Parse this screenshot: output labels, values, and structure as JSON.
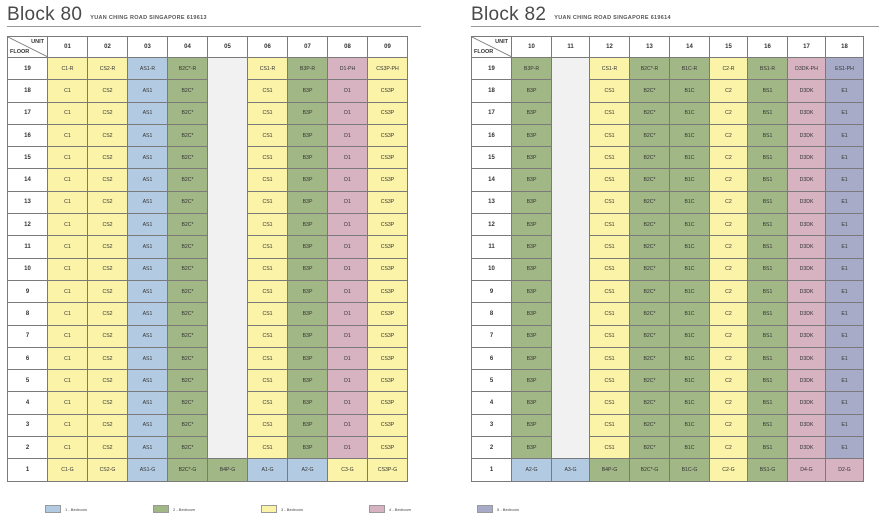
{
  "colors": {
    "1": "#b3cbe2",
    "2": "#a2b786",
    "3": "#fbf3a7",
    "4": "#d7b3c2",
    "5": "#a7abc7"
  },
  "labels": {
    "unit": "UNIT",
    "floor": "FLOOR"
  },
  "blocks": [
    {
      "key": "b80",
      "title": "Block 80",
      "address": "YUAN CHING ROAD SINGAPORE 619613",
      "units": [
        "01",
        "02",
        "03",
        "04",
        "05",
        "06",
        "07",
        "08",
        "09"
      ],
      "void_col": 4,
      "colors": [
        3,
        3,
        1,
        2,
        2,
        3,
        2,
        4,
        3
      ],
      "floors": [
        {
          "floor": "19",
          "cells": [
            "C1-R",
            "CS2-R",
            "AS1-R",
            "B2C*-R",
            "",
            "CS1-R",
            "B3P-R",
            "D1-PH",
            "CS3P-PH"
          ]
        },
        {
          "floor": "18",
          "cells": [
            "C1",
            "CS2",
            "AS1",
            "B2C*",
            "",
            "CS1",
            "B3P",
            "D1",
            "CS3P"
          ]
        },
        {
          "floor": "17",
          "cells": [
            "C1",
            "CS2",
            "AS1",
            "B2C*",
            "",
            "CS1",
            "B3P",
            "D1",
            "CS3P"
          ]
        },
        {
          "floor": "16",
          "cells": [
            "C1",
            "CS2",
            "AS1",
            "B2C*",
            "",
            "CS1",
            "B3P",
            "D1",
            "CS3P"
          ]
        },
        {
          "floor": "15",
          "cells": [
            "C1",
            "CS2",
            "AS1",
            "B2C*",
            "",
            "CS1",
            "B3P",
            "D1",
            "CS3P"
          ]
        },
        {
          "floor": "14",
          "cells": [
            "C1",
            "CS2",
            "AS1",
            "B2C*",
            "",
            "CS1",
            "B3P",
            "D1",
            "CS3P"
          ]
        },
        {
          "floor": "13",
          "cells": [
            "C1",
            "CS2",
            "AS1",
            "B2C*",
            "",
            "CS1",
            "B3P",
            "D1",
            "CS3P"
          ]
        },
        {
          "floor": "12",
          "cells": [
            "C1",
            "CS2",
            "AS1",
            "B2C*",
            "",
            "CS1",
            "B3P",
            "D1",
            "CS3P"
          ]
        },
        {
          "floor": "11",
          "cells": [
            "C1",
            "CS2",
            "AS1",
            "B2C*",
            "",
            "CS1",
            "B3P",
            "D1",
            "CS3P"
          ]
        },
        {
          "floor": "10",
          "cells": [
            "C1",
            "CS2",
            "AS1",
            "B2C*",
            "",
            "CS1",
            "B3P",
            "D1",
            "CS3P"
          ]
        },
        {
          "floor": "9",
          "cells": [
            "C1",
            "CS2",
            "AS1",
            "B2C*",
            "",
            "CS1",
            "B3P",
            "D1",
            "CS3P"
          ]
        },
        {
          "floor": "8",
          "cells": [
            "C1",
            "CS2",
            "AS1",
            "B2C*",
            "",
            "CS1",
            "B3P",
            "D1",
            "CS3P"
          ]
        },
        {
          "floor": "7",
          "cells": [
            "C1",
            "CS2",
            "AS1",
            "B2C*",
            "",
            "CS1",
            "B3P",
            "D1",
            "CS3P"
          ]
        },
        {
          "floor": "6",
          "cells": [
            "C1",
            "CS2",
            "AS1",
            "B2C*",
            "",
            "CS1",
            "B3P",
            "D1",
            "CS3P"
          ]
        },
        {
          "floor": "5",
          "cells": [
            "C1",
            "CS2",
            "AS1",
            "B2C*",
            "",
            "CS1",
            "B3P",
            "D1",
            "CS3P"
          ]
        },
        {
          "floor": "4",
          "cells": [
            "C1",
            "CS2",
            "AS1",
            "B2C*",
            "",
            "CS1",
            "B3P",
            "D1",
            "CS3P"
          ]
        },
        {
          "floor": "3",
          "cells": [
            "C1",
            "CS2",
            "AS1",
            "B2C*",
            "",
            "CS1",
            "B3P",
            "D1",
            "CS3P"
          ]
        },
        {
          "floor": "2",
          "cells": [
            "C1",
            "CS2",
            "AS1",
            "B2C*",
            "",
            "CS1",
            "B3P",
            "D1",
            "CS3P"
          ]
        }
      ],
      "ground": {
        "floor": "1",
        "cells": [
          "C1-G",
          "CS2-G",
          "AS1-G",
          "B2C*-G",
          "B4P-G",
          "A1-G",
          "A2-G",
          "C3-G",
          "CS3P-G"
        ],
        "colors": [
          3,
          3,
          1,
          2,
          2,
          1,
          1,
          3,
          3
        ]
      }
    },
    {
      "key": "b82",
      "title": "Block 82",
      "address": "YUAN CHING ROAD SINGAPORE 619614",
      "units": [
        "10",
        "11",
        "12",
        "13",
        "14",
        "15",
        "16",
        "17",
        "18"
      ],
      "void_col": 1,
      "colors": [
        2,
        2,
        3,
        2,
        2,
        3,
        2,
        4,
        5
      ],
      "floors": [
        {
          "floor": "19",
          "cells": [
            "B3P-R",
            "",
            "CS1-R",
            "B2C*-R",
            "B1C-R",
            "C2-R",
            "BS1-R",
            "D3DK-PH",
            "ES1-PH"
          ]
        },
        {
          "floor": "18",
          "cells": [
            "B3P",
            "",
            "CS1",
            "B2C*",
            "B1C",
            "C2",
            "BS1",
            "D3DK",
            "E1"
          ]
        },
        {
          "floor": "17",
          "cells": [
            "B3P",
            "",
            "CS1",
            "B2C*",
            "B1C",
            "C2",
            "BS1",
            "D3DK",
            "E1"
          ]
        },
        {
          "floor": "16",
          "cells": [
            "B3P",
            "",
            "CS1",
            "B2C*",
            "B1C",
            "C2",
            "BS1",
            "D3DK",
            "E1"
          ]
        },
        {
          "floor": "15",
          "cells": [
            "B3P",
            "",
            "CS1",
            "B2C*",
            "B1C",
            "C2",
            "BS1",
            "D3DK",
            "E1"
          ]
        },
        {
          "floor": "14",
          "cells": [
            "B3P",
            "",
            "CS1",
            "B2C*",
            "B1C",
            "C2",
            "BS1",
            "D3DK",
            "E1"
          ]
        },
        {
          "floor": "13",
          "cells": [
            "B3P",
            "",
            "CS1",
            "B2C*",
            "B1C",
            "C2",
            "BS1",
            "D3DK",
            "E1"
          ]
        },
        {
          "floor": "12",
          "cells": [
            "B3P",
            "",
            "CS1",
            "B2C*",
            "B1C",
            "C2",
            "BS1",
            "D3DK",
            "E1"
          ]
        },
        {
          "floor": "11",
          "cells": [
            "B3P",
            "",
            "CS1",
            "B2C*",
            "B1C",
            "C2",
            "BS1",
            "D3DK",
            "E1"
          ]
        },
        {
          "floor": "10",
          "cells": [
            "B3P",
            "",
            "CS1",
            "B2C*",
            "B1C",
            "C2",
            "BS1",
            "D3DK",
            "E1"
          ]
        },
        {
          "floor": "9",
          "cells": [
            "B3P",
            "",
            "CS1",
            "B2C*",
            "B1C",
            "C2",
            "BS1",
            "D3DK",
            "E1"
          ]
        },
        {
          "floor": "8",
          "cells": [
            "B3P",
            "",
            "CS1",
            "B2C*",
            "B1C",
            "C2",
            "BS1",
            "D3DK",
            "E1"
          ]
        },
        {
          "floor": "7",
          "cells": [
            "B3P",
            "",
            "CS1",
            "B2C*",
            "B1C",
            "C2",
            "BS1",
            "D3DK",
            "E1"
          ]
        },
        {
          "floor": "6",
          "cells": [
            "B3P",
            "",
            "CS1",
            "B2C*",
            "B1C",
            "C2",
            "BS1",
            "D3DK",
            "E1"
          ]
        },
        {
          "floor": "5",
          "cells": [
            "B3P",
            "",
            "CS1",
            "B2C*",
            "B1C",
            "C2",
            "BS1",
            "D3DK",
            "E1"
          ]
        },
        {
          "floor": "4",
          "cells": [
            "B3P",
            "",
            "CS1",
            "B2C*",
            "B1C",
            "C2",
            "BS1",
            "D3DK",
            "E1"
          ]
        },
        {
          "floor": "3",
          "cells": [
            "B3P",
            "",
            "CS1",
            "B2C*",
            "B1C",
            "C2",
            "BS1",
            "D3DK",
            "E1"
          ]
        },
        {
          "floor": "2",
          "cells": [
            "B3P",
            "",
            "CS1",
            "B2C*",
            "B1C",
            "C2",
            "BS1",
            "D3DK",
            "E1"
          ]
        }
      ],
      "ground": {
        "floor": "1",
        "cells": [
          "A2-G",
          "A3-G",
          "B4P-G",
          "B2C*-G",
          "B1C-G",
          "C2-G",
          "BS1-G",
          "D4-G",
          "D2-G"
        ],
        "colors": [
          1,
          1,
          2,
          2,
          2,
          3,
          2,
          4,
          4
        ]
      }
    }
  ],
  "legend": [
    {
      "label": "1 - Bedroom",
      "color": "#b3cbe2"
    },
    {
      "label": "2 - Bedroom",
      "color": "#a2b786"
    },
    {
      "label": "3 - Bedroom",
      "color": "#fbf3a7"
    },
    {
      "label": "4 - Bedroom",
      "color": "#d7b3c2"
    },
    {
      "label": "5 - Bedroom",
      "color": "#a7abc7"
    }
  ]
}
